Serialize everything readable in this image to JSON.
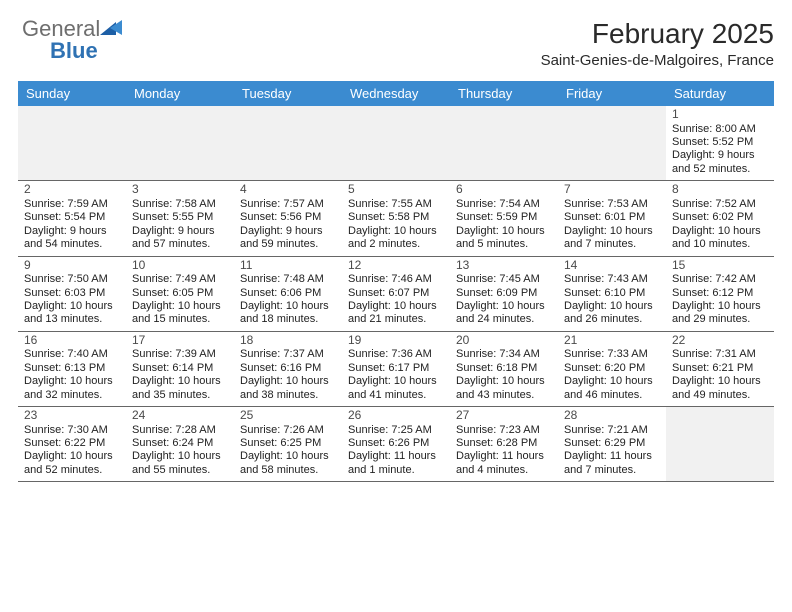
{
  "colors": {
    "header_blue": "#3b8bd0",
    "row_sep": "#666666",
    "muted_bg": "#f1f1f1",
    "text": "#222222",
    "logo_gray": "#6e6e6e",
    "logo_blue": "#2f72b3",
    "logo_mark": "#1d5fa6"
  },
  "logo": {
    "word1": "General",
    "word2": "Blue"
  },
  "header": {
    "title": "February 2025",
    "subtitle": "Saint-Genies-de-Malgoires, France"
  },
  "dow": [
    "Sunday",
    "Monday",
    "Tuesday",
    "Wednesday",
    "Thursday",
    "Friday",
    "Saturday"
  ],
  "weeks": [
    [
      {
        "empty": true
      },
      {
        "empty": true
      },
      {
        "empty": true
      },
      {
        "empty": true
      },
      {
        "empty": true
      },
      {
        "empty": true
      },
      {
        "n": "1",
        "sr": "Sunrise: 8:00 AM",
        "ss": "Sunset: 5:52 PM",
        "d1": "Daylight: 9 hours",
        "d2": "and 52 minutes."
      }
    ],
    [
      {
        "n": "2",
        "sr": "Sunrise: 7:59 AM",
        "ss": "Sunset: 5:54 PM",
        "d1": "Daylight: 9 hours",
        "d2": "and 54 minutes."
      },
      {
        "n": "3",
        "sr": "Sunrise: 7:58 AM",
        "ss": "Sunset: 5:55 PM",
        "d1": "Daylight: 9 hours",
        "d2": "and 57 minutes."
      },
      {
        "n": "4",
        "sr": "Sunrise: 7:57 AM",
        "ss": "Sunset: 5:56 PM",
        "d1": "Daylight: 9 hours",
        "d2": "and 59 minutes."
      },
      {
        "n": "5",
        "sr": "Sunrise: 7:55 AM",
        "ss": "Sunset: 5:58 PM",
        "d1": "Daylight: 10 hours",
        "d2": "and 2 minutes."
      },
      {
        "n": "6",
        "sr": "Sunrise: 7:54 AM",
        "ss": "Sunset: 5:59 PM",
        "d1": "Daylight: 10 hours",
        "d2": "and 5 minutes."
      },
      {
        "n": "7",
        "sr": "Sunrise: 7:53 AM",
        "ss": "Sunset: 6:01 PM",
        "d1": "Daylight: 10 hours",
        "d2": "and 7 minutes."
      },
      {
        "n": "8",
        "sr": "Sunrise: 7:52 AM",
        "ss": "Sunset: 6:02 PM",
        "d1": "Daylight: 10 hours",
        "d2": "and 10 minutes."
      }
    ],
    [
      {
        "n": "9",
        "sr": "Sunrise: 7:50 AM",
        "ss": "Sunset: 6:03 PM",
        "d1": "Daylight: 10 hours",
        "d2": "and 13 minutes."
      },
      {
        "n": "10",
        "sr": "Sunrise: 7:49 AM",
        "ss": "Sunset: 6:05 PM",
        "d1": "Daylight: 10 hours",
        "d2": "and 15 minutes."
      },
      {
        "n": "11",
        "sr": "Sunrise: 7:48 AM",
        "ss": "Sunset: 6:06 PM",
        "d1": "Daylight: 10 hours",
        "d2": "and 18 minutes."
      },
      {
        "n": "12",
        "sr": "Sunrise: 7:46 AM",
        "ss": "Sunset: 6:07 PM",
        "d1": "Daylight: 10 hours",
        "d2": "and 21 minutes."
      },
      {
        "n": "13",
        "sr": "Sunrise: 7:45 AM",
        "ss": "Sunset: 6:09 PM",
        "d1": "Daylight: 10 hours",
        "d2": "and 24 minutes."
      },
      {
        "n": "14",
        "sr": "Sunrise: 7:43 AM",
        "ss": "Sunset: 6:10 PM",
        "d1": "Daylight: 10 hours",
        "d2": "and 26 minutes."
      },
      {
        "n": "15",
        "sr": "Sunrise: 7:42 AM",
        "ss": "Sunset: 6:12 PM",
        "d1": "Daylight: 10 hours",
        "d2": "and 29 minutes."
      }
    ],
    [
      {
        "n": "16",
        "sr": "Sunrise: 7:40 AM",
        "ss": "Sunset: 6:13 PM",
        "d1": "Daylight: 10 hours",
        "d2": "and 32 minutes."
      },
      {
        "n": "17",
        "sr": "Sunrise: 7:39 AM",
        "ss": "Sunset: 6:14 PM",
        "d1": "Daylight: 10 hours",
        "d2": "and 35 minutes."
      },
      {
        "n": "18",
        "sr": "Sunrise: 7:37 AM",
        "ss": "Sunset: 6:16 PM",
        "d1": "Daylight: 10 hours",
        "d2": "and 38 minutes."
      },
      {
        "n": "19",
        "sr": "Sunrise: 7:36 AM",
        "ss": "Sunset: 6:17 PM",
        "d1": "Daylight: 10 hours",
        "d2": "and 41 minutes."
      },
      {
        "n": "20",
        "sr": "Sunrise: 7:34 AM",
        "ss": "Sunset: 6:18 PM",
        "d1": "Daylight: 10 hours",
        "d2": "and 43 minutes."
      },
      {
        "n": "21",
        "sr": "Sunrise: 7:33 AM",
        "ss": "Sunset: 6:20 PM",
        "d1": "Daylight: 10 hours",
        "d2": "and 46 minutes."
      },
      {
        "n": "22",
        "sr": "Sunrise: 7:31 AM",
        "ss": "Sunset: 6:21 PM",
        "d1": "Daylight: 10 hours",
        "d2": "and 49 minutes."
      }
    ],
    [
      {
        "n": "23",
        "sr": "Sunrise: 7:30 AM",
        "ss": "Sunset: 6:22 PM",
        "d1": "Daylight: 10 hours",
        "d2": "and 52 minutes."
      },
      {
        "n": "24",
        "sr": "Sunrise: 7:28 AM",
        "ss": "Sunset: 6:24 PM",
        "d1": "Daylight: 10 hours",
        "d2": "and 55 minutes."
      },
      {
        "n": "25",
        "sr": "Sunrise: 7:26 AM",
        "ss": "Sunset: 6:25 PM",
        "d1": "Daylight: 10 hours",
        "d2": "and 58 minutes."
      },
      {
        "n": "26",
        "sr": "Sunrise: 7:25 AM",
        "ss": "Sunset: 6:26 PM",
        "d1": "Daylight: 11 hours",
        "d2": "and 1 minute."
      },
      {
        "n": "27",
        "sr": "Sunrise: 7:23 AM",
        "ss": "Sunset: 6:28 PM",
        "d1": "Daylight: 11 hours",
        "d2": "and 4 minutes."
      },
      {
        "n": "28",
        "sr": "Sunrise: 7:21 AM",
        "ss": "Sunset: 6:29 PM",
        "d1": "Daylight: 11 hours",
        "d2": "and 7 minutes."
      },
      {
        "empty": true
      }
    ]
  ]
}
